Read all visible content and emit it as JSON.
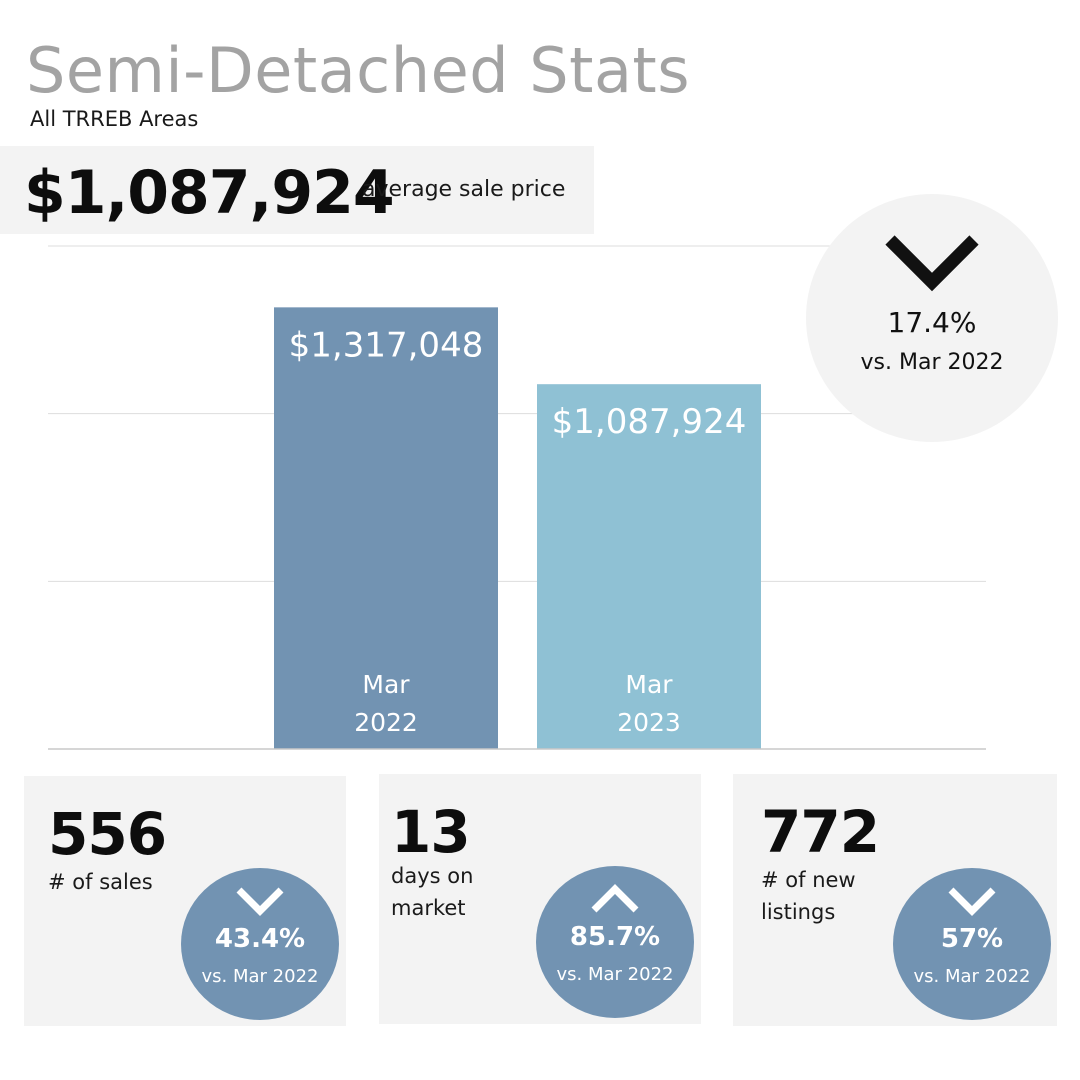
{
  "header": {
    "title": "Semi-Detached Stats",
    "subtitle": "All TRREB Areas"
  },
  "average_price": {
    "value": "$1,087,924",
    "label": "average sale price"
  },
  "price_change": {
    "direction": "down",
    "icon": "chevron-down-icon",
    "percent": "17.4%",
    "comparison": "vs. Mar 2022"
  },
  "chart_data": {
    "type": "bar",
    "categories": [
      [
        "Mar",
        "2022"
      ],
      [
        "Mar",
        "2023"
      ]
    ],
    "values": [
      1317048,
      1087924
    ],
    "data_labels": [
      "$1,317,048",
      "$1,087,924"
    ],
    "ylim": [
      0,
      1500000
    ],
    "grid": true,
    "colors": [
      "#7293b2",
      "#8fc1d4"
    ]
  },
  "stats": [
    {
      "value": "556",
      "label_lines": [
        "# of sales"
      ],
      "change": {
        "direction": "down",
        "icon": "chevron-down-icon",
        "percent": "43.4%",
        "comparison": "vs. Mar 2022"
      }
    },
    {
      "value": "13",
      "label_lines": [
        "days on",
        "market"
      ],
      "change": {
        "direction": "up",
        "icon": "chevron-up-icon",
        "percent": "85.7%",
        "comparison": "vs. Mar 2022"
      }
    },
    {
      "value": "772",
      "label_lines": [
        "# of new",
        "listings"
      ],
      "change": {
        "direction": "down",
        "icon": "chevron-down-icon",
        "percent": "57%",
        "comparison": "vs. Mar 2022"
      }
    }
  ],
  "colors": {
    "title": "#a3a3a3",
    "panel": "#f3f3f3",
    "badge": "#7293b2",
    "gridline": "#dddddd",
    "baseline": "#c8c8c8"
  }
}
